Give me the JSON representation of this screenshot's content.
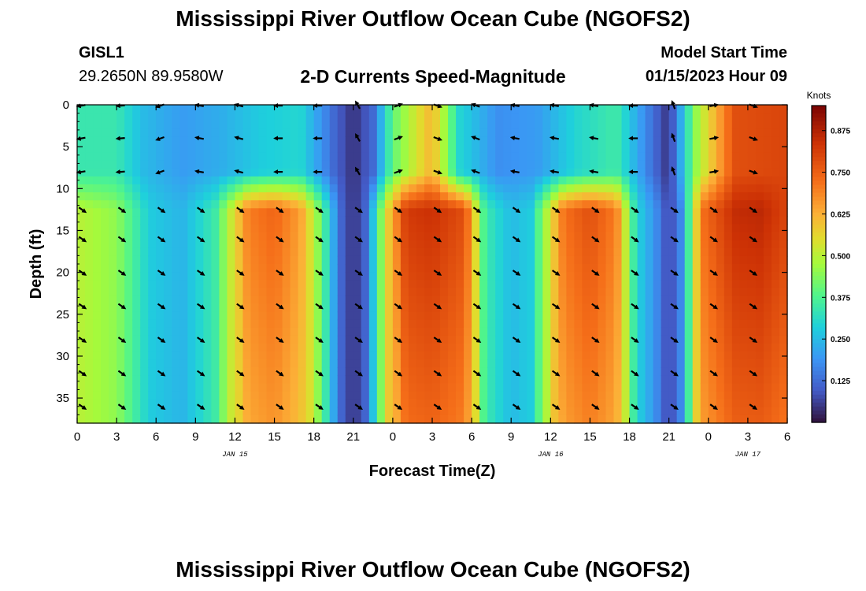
{
  "header": {
    "title": "Mississippi River Outflow Ocean Cube (NGOFS2)",
    "station": "GISL1",
    "coordinates": "29.2650N  89.9580W",
    "subtitle": "2-D Currents Speed-Magnitude",
    "model_start_label": "Model Start Time",
    "model_start_value": "01/15/2023 Hour 09"
  },
  "footer": {
    "title": "Mississippi River Outflow Ocean Cube (NGOFS2)"
  },
  "chart_data": {
    "type": "heatmap",
    "title": "2-D Currents Speed-Magnitude",
    "xlabel": "Forecast Time(Z)",
    "ylabel": "Depth (ft)",
    "x_hours_from_jan15_00z": [
      0,
      54
    ],
    "x_tick_labels": [
      "0",
      "3",
      "6",
      "9",
      "12",
      "15",
      "18",
      "21",
      "0",
      "3",
      "6",
      "9",
      "12",
      "15",
      "18",
      "21",
      "0",
      "3",
      "6"
    ],
    "date_labels": [
      {
        "hour": 12,
        "text": "JAN 15"
      },
      {
        "hour": 36,
        "text": "JAN 16"
      },
      {
        "hour": 51,
        "text": "JAN 17"
      }
    ],
    "y_range_ft": [
      0,
      38
    ],
    "y_ticks": [
      0,
      5,
      10,
      15,
      20,
      25,
      30,
      35
    ],
    "colorbar": {
      "unit": "Knots",
      "range": [
        0.0,
        0.95
      ],
      "ticks": [
        "0.125",
        "0.250",
        "0.375",
        "0.500",
        "0.625",
        "0.750",
        "0.875"
      ]
    },
    "surface_layer_speed_knots": {
      "hours": [
        0,
        3,
        5,
        8,
        11,
        14,
        17,
        19.5,
        21,
        22.5,
        24,
        27,
        29,
        32,
        35,
        38,
        41,
        43.5,
        45,
        47,
        50,
        54
      ],
      "values": [
        0.34,
        0.34,
        0.25,
        0.2,
        0.23,
        0.28,
        0.3,
        0.12,
        0.04,
        0.12,
        0.4,
        0.62,
        0.3,
        0.18,
        0.2,
        0.3,
        0.35,
        0.15,
        0.04,
        0.45,
        0.78,
        0.8
      ]
    },
    "deep_layer_speed_knots": {
      "hours": [
        0,
        3,
        5.5,
        8,
        10.5,
        13,
        15,
        17,
        18.5,
        20,
        21,
        22,
        23.5,
        25,
        27,
        29.5,
        31,
        33,
        34.5,
        37,
        39,
        41,
        42.5,
        44,
        45,
        46,
        47.5,
        50,
        52,
        54
      ],
      "values": [
        0.5,
        0.45,
        0.28,
        0.24,
        0.35,
        0.7,
        0.74,
        0.65,
        0.42,
        0.12,
        0.04,
        0.12,
        0.55,
        0.82,
        0.84,
        0.78,
        0.35,
        0.25,
        0.28,
        0.72,
        0.78,
        0.7,
        0.3,
        0.18,
        0.06,
        0.18,
        0.72,
        0.85,
        0.86,
        0.8
      ]
    },
    "vectors": {
      "hours": [
        0,
        3,
        6,
        9,
        12,
        15,
        18,
        21,
        24,
        27,
        30,
        33,
        36,
        39,
        42,
        45,
        48,
        51
      ],
      "depths_ft": [
        0,
        4,
        8,
        12.5,
        16,
        20,
        24,
        28,
        32,
        36
      ],
      "surface_angle_deg_by_column": [
        170,
        175,
        160,
        190,
        195,
        180,
        180,
        240,
        340,
        20,
        200,
        190,
        190,
        190,
        180,
        250,
        350,
        20
      ],
      "deep_angle_deg": 35
    }
  }
}
